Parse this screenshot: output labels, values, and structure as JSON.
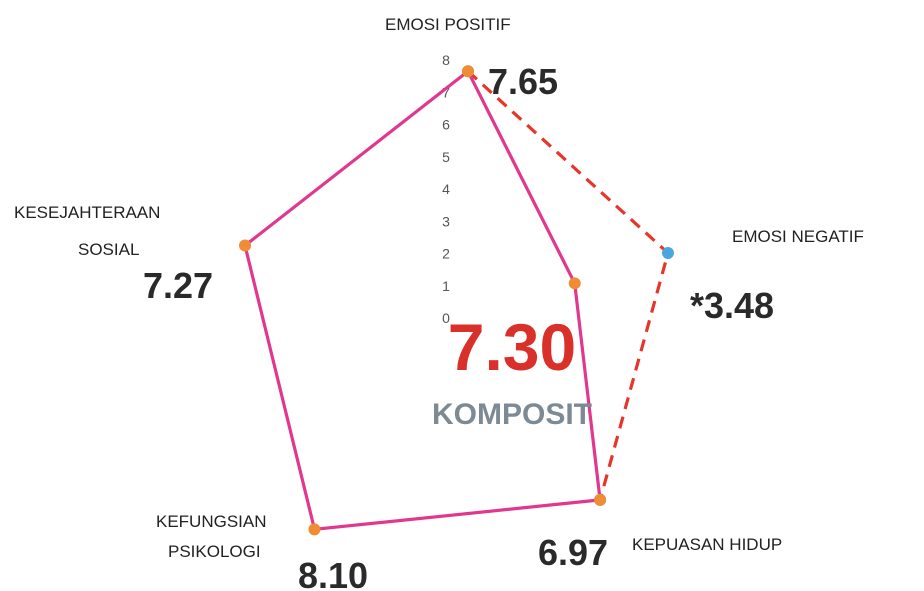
{
  "chart_data": {
    "type": "radar",
    "categories": [
      "EMOSI POSITIF",
      "EMOSI NEGATIF",
      "KEPUASAN HIDUP",
      [
        "KEFUNGSIAN",
        "PSIKOLOGI"
      ],
      [
        "KESEJAHTERAAN",
        "SOSIAL"
      ]
    ],
    "series": [
      {
        "values": [
          7.65,
          3.48,
          6.97,
          8.1,
          7.27
        ],
        "value_labels": [
          "7.65",
          "*3.48",
          "6.97",
          "8.10",
          "7.27"
        ],
        "color": "#e0388f",
        "marker_color": "#ef8c34"
      },
      {
        "values": [
          7.65,
          6.52,
          6.97,
          null,
          null
        ],
        "color": "#e8352b",
        "marker_color": "#4aa6e0",
        "dashed": true
      }
    ],
    "rlim": [
      0,
      8
    ],
    "rticks": [
      0,
      1,
      2,
      3,
      4,
      5,
      6,
      7,
      8
    ],
    "annotations": [
      "7.30",
      "KOMPOSIT"
    ]
  }
}
